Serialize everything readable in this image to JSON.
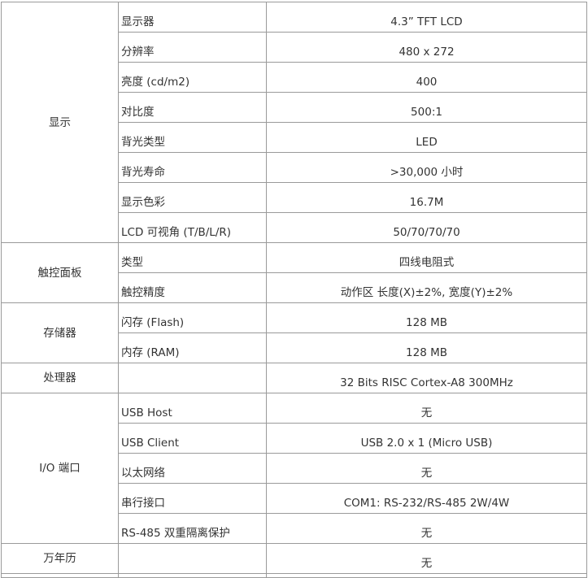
{
  "groups": [
    {
      "name": "显示",
      "rows": [
        {
          "key": "显示器",
          "value": "4.3”  TFT LCD"
        },
        {
          "key": "分辨率",
          "value": "480 x 272"
        },
        {
          "key": "亮度 (cd/m2)",
          "value": "400"
        },
        {
          "key": "对比度",
          "value": "500:1"
        },
        {
          "key": "背光类型",
          "value": "LED"
        },
        {
          "key": "背光寿命",
          "value": ">30,000 小时"
        },
        {
          "key": "显示色彩",
          "value": "16.7M"
        },
        {
          "key": "LCD 可视角 (T/B/L/R)",
          "value": "50/70/70/70"
        }
      ]
    },
    {
      "name": "触控面板",
      "rows": [
        {
          "key": "类型",
          "value": "四线电阻式"
        },
        {
          "key": "触控精度",
          "value": "动作区 长度(X)±2%, 宽度(Y)±2%"
        }
      ]
    },
    {
      "name": "存储器",
      "rows": [
        {
          "key": "闪存 (Flash)",
          "value": "128 MB"
        },
        {
          "key": "内存 (RAM)",
          "value": "128 MB"
        }
      ]
    },
    {
      "name": "处理器",
      "rows": [
        {
          "key": "",
          "value": "32 Bits RISC Cortex-A8 300MHz"
        }
      ]
    },
    {
      "name": "I/O 端口",
      "rows": [
        {
          "key": "USB Host",
          "value": "无"
        },
        {
          "key": "USB Client",
          "value": "USB 2.0 x 1 (Micro USB)"
        },
        {
          "key": "以太网络",
          "value": "无"
        },
        {
          "key": "串行接口",
          "value": "COM1: RS-232/RS-485 2W/4W"
        },
        {
          "key": "RS-485 双重隔离保护",
          "value": "无"
        }
      ]
    },
    {
      "name": "万年历",
      "rows": [
        {
          "key": "",
          "value": "无"
        }
      ]
    }
  ]
}
